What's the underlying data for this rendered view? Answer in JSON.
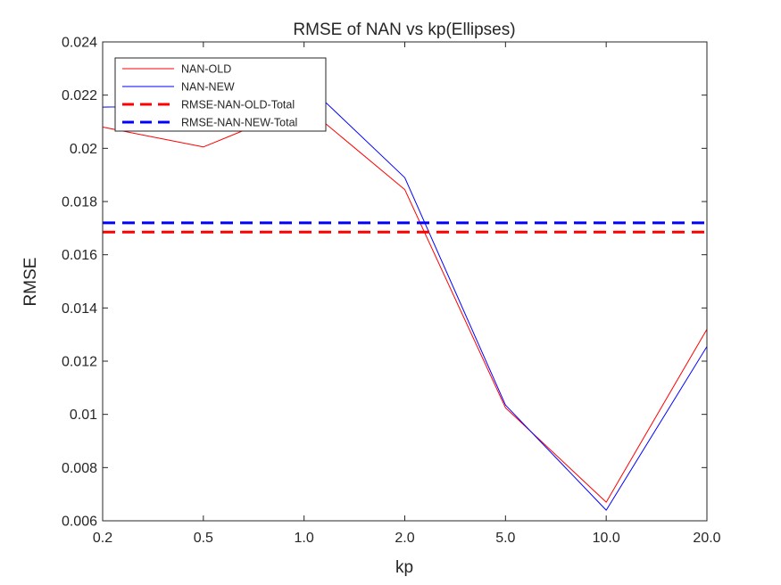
{
  "chart_data": {
    "type": "line",
    "title": "RMSE of NAN vs kp(Ellipses)",
    "xlabel": "kp",
    "ylabel": "RMSE",
    "categories": [
      "0.2",
      "0.5",
      "1.0",
      "2.0",
      "5.0",
      "10.0",
      "20.0"
    ],
    "ylim": [
      0.006,
      0.024
    ],
    "yticks": [
      "0.006",
      "0.008",
      "0.01",
      "0.012",
      "0.014",
      "0.016",
      "0.018",
      "0.02",
      "0.022",
      "0.024"
    ],
    "grid": false,
    "legend_position": "top-left",
    "series": [
      {
        "name": "NAN-OLD",
        "style": "solid",
        "color": "#ff0000",
        "values": [
          0.0208,
          0.02005,
          0.0216,
          0.01845,
          0.01025,
          0.0067,
          0.0132
        ]
      },
      {
        "name": "NAN-NEW",
        "style": "solid",
        "color": "#0000ff",
        "values": [
          0.02155,
          0.0216,
          0.0225,
          0.0189,
          0.01035,
          0.0064,
          0.01255
        ]
      },
      {
        "name": "RMSE-NAN-OLD-Total",
        "style": "dashed",
        "color": "#ff0000",
        "values": [
          0.01685,
          0.01685,
          0.01685,
          0.01685,
          0.01685,
          0.01685,
          0.01685
        ]
      },
      {
        "name": "RMSE-NAN-NEW-Total",
        "style": "dashed",
        "color": "#0000ff",
        "values": [
          0.0172,
          0.0172,
          0.0172,
          0.0172,
          0.0172,
          0.0172,
          0.0172
        ]
      }
    ]
  }
}
